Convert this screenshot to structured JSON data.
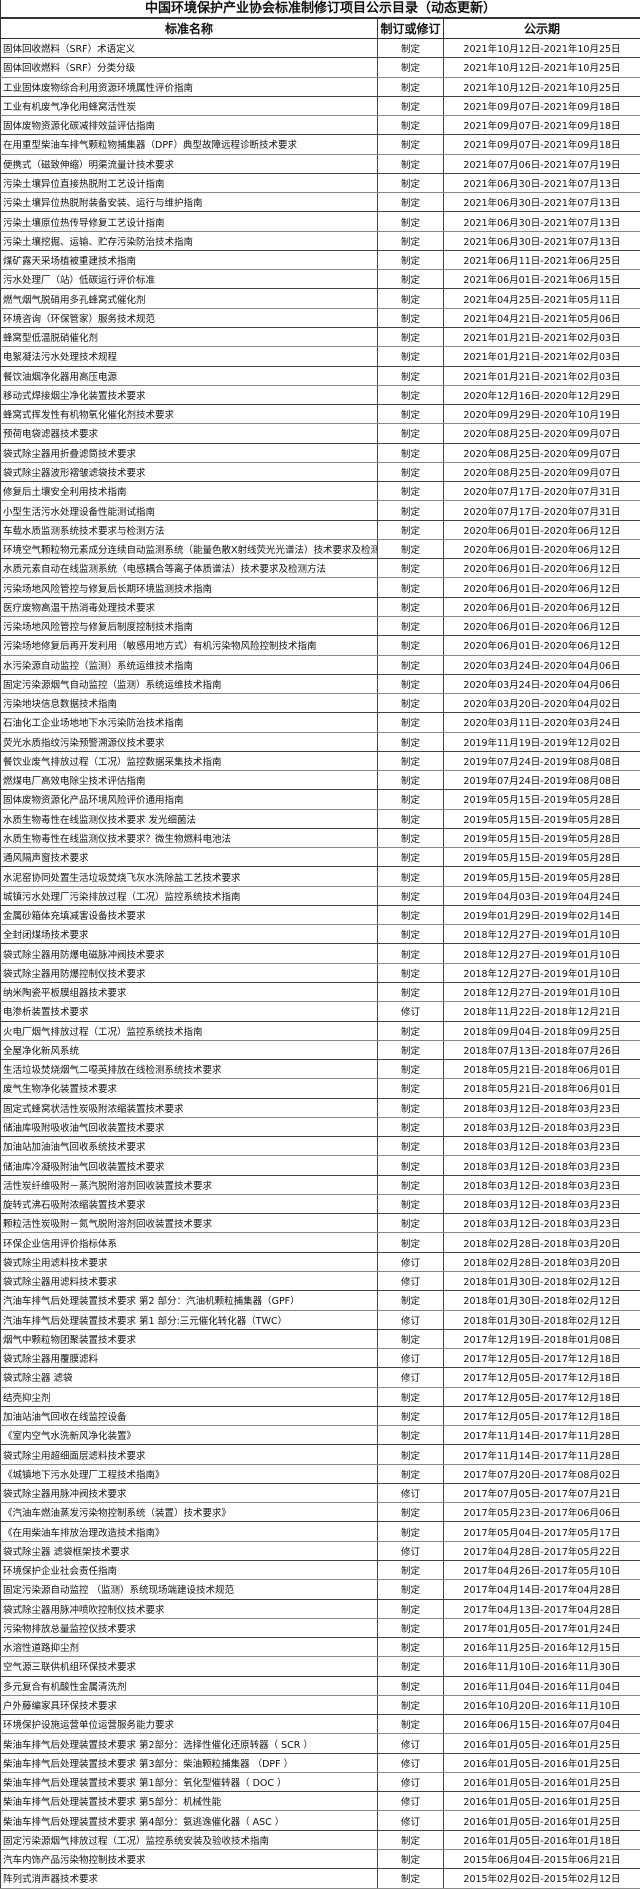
{
  "title": "中国环境保护产业协会标准制修订项目公示目录（动态更新）",
  "headers": {
    "name": "标准名称",
    "type": "制订或修订",
    "period": "公示期"
  },
  "rows": [
    [
      "固体回收燃料（SRF）术语定义",
      "制定",
      "2021年10月12日-2021年10月25日"
    ],
    [
      "固体回收燃料（SRF）分类分级",
      "制定",
      "2021年10月12日-2021年10月25日"
    ],
    [
      "工业固体废物综合利用资源环境属性评价指南",
      "制定",
      "2021年10月12日-2021年10月25日"
    ],
    [
      "工业有机废气净化用蜂窝活性炭",
      "制定",
      "2021年09月07日-2021年09月18日"
    ],
    [
      "固体废物资源化碳减排效益评估指南",
      "制定",
      "2021年09月07日-2021年09月18日"
    ],
    [
      "在用重型柴油车排气颗粒物捕集器（DPF）典型故障远程诊断技术要求",
      "制定",
      "2021年09月07日-2021年09月18日"
    ],
    [
      "便携式（磁致伸缩）明渠流量计技术要求",
      "制定",
      "2021年07月06日-2021年07月19日"
    ],
    [
      "污染土壤异位直接热脱附工艺设计指南",
      "制定",
      "2021年06月30日-2021年07月13日"
    ],
    [
      "污染土壤异位热脱附装备安装、运行与维护指南",
      "制定",
      "2021年06月30日-2021年07月13日"
    ],
    [
      "污染土壤原位热传导修复工艺设计指南",
      "制定",
      "2021年06月30日-2021年07月13日"
    ],
    [
      "污染土壤挖掘、运输、贮存污染防治技术指南",
      "制定",
      "2021年06月30日-2021年07月13日"
    ],
    [
      "煤矿露天采场植被重建技术指南",
      "制定",
      "2021年06月11日-2021年06月25日"
    ],
    [
      "污水处理厂（站）低碳运行评价标准",
      "制定",
      "2021年06月01日-2021年06月15日"
    ],
    [
      "燃气烟气脱硝用多孔蜂窝式催化剂",
      "制定",
      "2021年04月25日-2021年05月11日"
    ],
    [
      "环境咨询（环保管家）服务技术规范",
      "制定",
      "2021年04月21日-2021年05月06日"
    ],
    [
      "蜂窝型低温脱硝催化剂",
      "制定",
      "2021年01月21日-2021年02月03日"
    ],
    [
      "电絮凝法污水处理技术规程",
      "制定",
      "2021年01月21日-2021年02月03日"
    ],
    [
      "餐饮油烟净化器用高压电源",
      "制定",
      "2021年01月21日-2021年02月03日"
    ],
    [
      "移动式焊接烟尘净化装置技术要求",
      "制定",
      "2020年12月16日-2020年12月29日"
    ],
    [
      "蜂窝式挥发性有机物氧化催化剂技术要求",
      "制定",
      "2020年09月29日-2020年10月19日"
    ],
    [
      "预荷电袋滤器技术要求",
      "制定",
      "2020年08月25日-2020年09月07日"
    ],
    [
      "袋式除尘器用折叠滤筒技术要求",
      "制定",
      "2020年08月25日-2020年09月07日"
    ],
    [
      "袋式除尘器波形褶皱滤袋技术要求",
      "制定",
      "2020年08月25日-2020年09月07日"
    ],
    [
      "修复后土壤安全利用技术指南",
      "制定",
      "2020年07月17日-2020年07月31日"
    ],
    [
      "小型生活污水处理设备性能测试指南",
      "制定",
      "2020年07月17日-2020年07月31日"
    ],
    [
      "车载水质监测系统技术要求与检测方法",
      "制定",
      "2020年06月01日-2020年06月12日"
    ],
    [
      "环境空气颗粒物元素成分连续自动监测系统（能量色散X射线荧光光谱法）技术要求及检测方法",
      "制定",
      "2020年06月01日-2020年06月12日"
    ],
    [
      "水质元素自动在线监测系统（电感耦合等离子体质谱法）技术要求及检测方法",
      "制定",
      "2020年06月01日-2020年06月12日"
    ],
    [
      "污染场地风险管控与修复后长期环境监测技术指南",
      "制定",
      "2020年06月01日-2020年06月12日"
    ],
    [
      "医疗废物高温干热消毒处理技术要求",
      "制定",
      "2020年06月01日-2020年06月12日"
    ],
    [
      "污染场地风险管控与修复后制度控制技术指南",
      "制定",
      "2020年06月01日-2020年06月12日"
    ],
    [
      "污染场地修复后再开发利用（敏感用地方式）有机污染物风险控制技术指南",
      "制定",
      "2020年06月01日-2020年06月12日"
    ],
    [
      "水污染源自动监控（监测）系统运维技术指南",
      "制定",
      "2020年03月24日-2020年04月06日"
    ],
    [
      "固定污染源烟气自动监控（监测）系统运维技术指南",
      "制定",
      "2020年03月24日-2020年04月06日"
    ],
    [
      "污染地块信息数据技术指南",
      "制定",
      "2020年03月20日-2020年04月02日"
    ],
    [
      "石油化工企业场地地下水污染防治技术指南",
      "制定",
      "2020年03月11日-2020年03月24日"
    ],
    [
      "荧光水质指纹污染预警溯源仪技术要求",
      "制定",
      "2019年11月19日-2019年12月02日"
    ],
    [
      "餐饮业废气排放过程（工况）监控数据采集技术指南",
      "制定",
      "2019年07月24日-2019年08月08日"
    ],
    [
      "燃煤电厂高效电除尘技术评估指南",
      "制定",
      "2019年07月24日-2019年08月08日"
    ],
    [
      "固体废物资源化产品环境风险评价通用指南",
      "制定",
      "2019年05月15日-2019年05月28日"
    ],
    [
      "水质生物毒性在线监测仪技术要求 发光细菌法",
      "制定",
      "2019年05月15日-2019年05月28日"
    ],
    [
      "水质生物毒性在线监测仪技术要求？微生物燃料电池法",
      "制定",
      "2019年05月15日-2019年05月28日"
    ],
    [
      "通风隔声窗技术要求",
      "制定",
      "2019年05月15日-2019年05月28日"
    ],
    [
      "水泥窑协同处置生活垃圾焚烧飞灰水洗除盐工艺技术要求",
      "制定",
      "2019年05月15日-2019年05月28日"
    ],
    [
      "城镇污水处理厂污染排放过程（工况）监控系统技术指南",
      "制定",
      "2019年04月03日-2019年04月24日"
    ],
    [
      "金属砂箱体充填减害设备技术要求",
      "制定",
      "2019年01月29日-2019年02月14日"
    ],
    [
      "全封闭煤场技术要求",
      "制定",
      "2018年12月27日-2019年01月10日"
    ],
    [
      "袋式除尘器用防爆电磁脉冲阀技术要求",
      "制定",
      "2018年12月27日-2019年01月10日"
    ],
    [
      "袋式除尘器用防爆控制仪技术要求",
      "制定",
      "2018年12月27日-2019年01月10日"
    ],
    [
      "纳米陶瓷平板膜组器技术要求",
      "制定",
      "2018年12月27日-2019年01月10日"
    ],
    [
      "电渗析装置技术要求",
      "修订",
      "2018年11月22日-2018年12月21日"
    ],
    [
      "火电厂烟气排放过程（工况）监控系统技术指南",
      "制定",
      "2018年09月04日-2018年09月25日"
    ],
    [
      "全屋净化新风系统",
      "制定",
      "2018年07月13日-2018年07月26日"
    ],
    [
      "生活垃圾焚烧烟气二噁英排放在线检测系统技术要求",
      "制定",
      "2018年05月21日-2018年06月01日"
    ],
    [
      "废气生物净化装置技术要求",
      "制定",
      "2018年05月21日-2018年06月01日"
    ],
    [
      "固定式蜂窝状活性炭吸附浓缩装置技术要求",
      "制定",
      "2018年03月12日-2018年03月23日"
    ],
    [
      "储油库吸附吸收油气回收装置技术要求",
      "制定",
      "2018年03月12日-2018年03月23日"
    ],
    [
      "加油站加油油气回收系统技术要求",
      "制定",
      "2018年03月12日-2018年03月23日"
    ],
    [
      "储油库冷凝吸附油气回收装置技术要求",
      "制定",
      "2018年03月12日-2018年03月23日"
    ],
    [
      "活性炭纤维吸附－蒸汽脱附溶剂回收装置技术要求",
      "制定",
      "2018年03月12日-2018年03月23日"
    ],
    [
      "旋转式沸石吸附浓缩装置技术要求",
      "制定",
      "2018年03月12日-2018年03月23日"
    ],
    [
      "颗粒活性炭吸附－氮气脱附溶剂回收装置技术要求",
      "制定",
      "2018年03月12日-2018年03月23日"
    ],
    [
      "环保企业信用评价指标体系",
      "制定",
      "2018年02月28日-2018年03月20日"
    ],
    [
      "袋式除尘用滤料技术要求",
      "修订",
      "2018年02月28日-2018年03月20日"
    ],
    [
      "袋式除尘器用滤料技术要求",
      "修订",
      "2018年01月30日-2018年02月12日"
    ],
    [
      "汽油车排气后处理装置技术要求 第2 部分：汽油机颗粒捕集器（GPF）",
      "制定",
      "2018年01月30日-2018年02月12日"
    ],
    [
      "汽油车排气后处理装置技术要求 第1 部分:三元催化转化器（TWC）",
      "修订",
      "2018年01月30日-2018年02月12日"
    ],
    [
      "烟气中颗粒物团聚装置技术要求",
      "制定",
      "2017年12月19日-2018年01月08日"
    ],
    [
      "袋式除尘器用覆膜滤料",
      "修订",
      "2017年12月05日-2017年12月18日"
    ],
    [
      "袋式除尘器 滤袋",
      "修订",
      "2017年12月05日-2017年12月18日"
    ],
    [
      "结壳抑尘剂",
      "制定",
      "2017年12月05日-2017年12月18日"
    ],
    [
      "加油站油气回收在线监控设备",
      "制定",
      "2017年12月05日-2017年12月18日"
    ],
    [
      "《室内空气水洗新风净化装置》",
      "制定",
      "2017年11月14日-2017年11月28日"
    ],
    [
      "袋式除尘用超细面层滤料技术要求",
      "制定",
      "2017年11月14日-2017年11月28日"
    ],
    [
      "《城镇地下污水处理厂工程技术指南》",
      "制定",
      "2017年07月20日-2017年08月02日"
    ],
    [
      "袋式除尘器用脉冲阀技术要求",
      "修订",
      "2017年07月05日-2017年07月21日"
    ],
    [
      "《汽油车燃油蒸发污染物控制系统（装置）技术要求》",
      "制定",
      "2017年05月23日-2017年06月06日"
    ],
    [
      "《在用柴油车排放治理改造技术指南》",
      "制定",
      "2017年05月04日-2017年05月17日"
    ],
    [
      "袋式除尘器 滤袋框架技术要求",
      "修订",
      "2017年04月28日-2017年05月22日"
    ],
    [
      "环境保护企业社会责任指南",
      "制定",
      "2017年04月26日-2017年05月10日"
    ],
    [
      "固定污染源自动监控 （监测）系统现场端建设技术规范",
      "制定",
      "2017年04月14日-2017年04月28日"
    ],
    [
      "袋式除尘器用脉冲喷吹控制仪技术要求",
      "制定",
      "2017年04月13日-2017年04月28日"
    ],
    [
      "污染物排放总量监控仪技术要求",
      "制定",
      "2017年01月05日-2017年01月24日"
    ],
    [
      "水溶性道路抑尘剂",
      "制定",
      "2016年11月25日-2016年12月15日"
    ],
    [
      "空气源三联供机组环保技术要求",
      "制定",
      "2016年11月10日-2016年11月30日"
    ],
    [
      "多元复合有机酸性金属清洗剂",
      "制定",
      "2016年11月04日-2016年11月04日"
    ],
    [
      "户外藤编家具环保技术要求",
      "制定",
      "2016年10月20日-2016年11月10日"
    ],
    [
      "环境保护设施运营单位运营服务能力要求",
      "制定",
      "2016年06月15日-2016年07月04日"
    ],
    [
      "柴油车排气后处理装置技术要求 第2部分：选择性催化还原转器（ SCR ）",
      "修订",
      "2016年01月05日-2016年01月25日"
    ],
    [
      "柴油车排气后处理装置技术要求 第3部分：柴油颗粒捕集器 （DPF ）",
      "修订",
      "2016年01月05日-2016年01月25日"
    ],
    [
      "柴油车排气后处理装置技术要求 第1部分：氧化型催转器（ DOC ）",
      "修订",
      "2016年01月05日-2016年01月25日"
    ],
    [
      "柴油车排气后处理装置技术要求 第5部分：机械性能",
      "修订",
      "2016年01月05日-2016年01月25日"
    ],
    [
      "柴油车排气后处理装置技术要求 第4部分：氨逃逸催化器（ ASC ）",
      "修订",
      "2016年01月05日-2016年01月25日"
    ],
    [
      "固定污染源烟气排放过程（工况）监控系统安装及验收技术指南",
      "制定",
      "2016年01月05日-2016年01月18日"
    ],
    [
      "汽车内饰产品污染物控制技术要求",
      "制定",
      "2015年06月04日-2015年06月21日"
    ],
    [
      "阵列式消声器技术要求",
      "制定",
      "2015年02月02日-2015年02月12日"
    ]
  ]
}
